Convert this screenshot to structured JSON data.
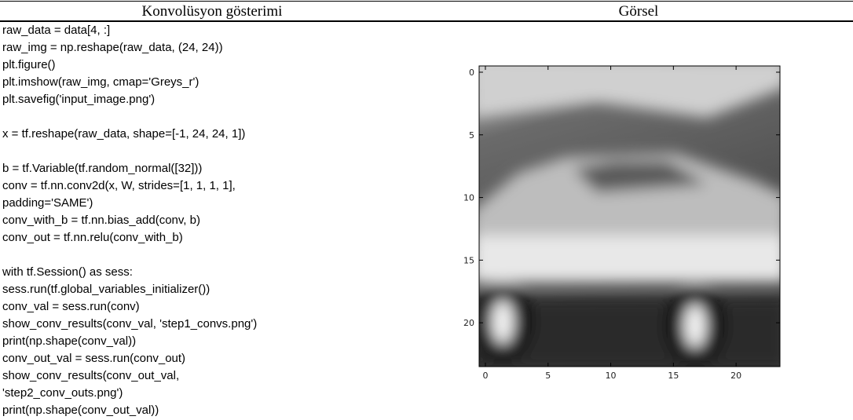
{
  "header": {
    "columns": [
      "Konvolüsyon gösterimi",
      "Görsel"
    ]
  },
  "code": {
    "blocks": [
      [
        "raw_data = data[4, :]",
        "raw_img = np.reshape(raw_data, (24, 24))",
        "plt.figure()",
        "plt.imshow(raw_img, cmap='Greys_r')",
        "plt.savefig('input_image.png')"
      ],
      [
        "x = tf.reshape(raw_data, shape=[-1, 24, 24, 1])"
      ],
      [
        "b = tf.Variable(tf.random_normal([32]))",
        "conv = tf.nn.conv2d(x, W, strides=[1, 1, 1, 1],",
        "padding='SAME')",
        "conv_with_b = tf.nn.bias_add(conv, b)",
        "conv_out = tf.nn.relu(conv_with_b)"
      ],
      [
        "with tf.Session() as sess:",
        "sess.run(tf.global_variables_initializer())",
        "conv_val = sess.run(conv)",
        "show_conv_results(conv_val, 'step1_convs.png')",
        "print(np.shape(conv_val))",
        "conv_out_val = sess.run(conv_out)",
        "show_conv_results(conv_out_val,",
        "'step2_conv_outs.png')",
        "print(np.shape(conv_out_val))"
      ]
    ]
  },
  "figure": {
    "xlim": [
      -0.5,
      23.5
    ],
    "ylim": [
      -0.5,
      23.5
    ],
    "xticks": [
      0,
      5,
      10,
      15,
      20
    ],
    "yticks": [
      0,
      5,
      10,
      15,
      20
    ]
  }
}
